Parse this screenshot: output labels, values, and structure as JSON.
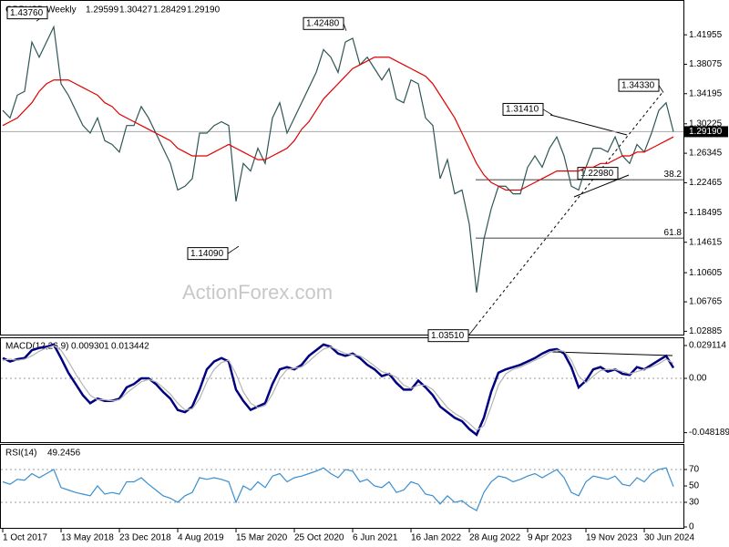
{
  "chart_data": [
    {
      "type": "line",
      "title": "GBPUSD,Weekly",
      "ohlc": [
        "1.29599",
        "1.30427",
        "1.28429",
        "1.29190"
      ],
      "watermark": "ActionForex.com",
      "categories": [
        "1 Oct 2017",
        null,
        null,
        null,
        null,
        null,
        null,
        null,
        "13 May 2018",
        null,
        null,
        null,
        null,
        null,
        null,
        null,
        "23 Dec 2018",
        null,
        null,
        null,
        null,
        null,
        null,
        null,
        "4 Aug 2019",
        null,
        null,
        null,
        null,
        null,
        null,
        null,
        "15 Mar 2020",
        null,
        null,
        null,
        null,
        null,
        null,
        null,
        "25 Oct 2020",
        null,
        null,
        null,
        null,
        null,
        null,
        null,
        "6 Jun 2021",
        null,
        null,
        null,
        null,
        null,
        null,
        null,
        "16 Jan 2022",
        null,
        null,
        null,
        null,
        null,
        null,
        null,
        "28 Aug 2022",
        null,
        null,
        null,
        null,
        null,
        null,
        null,
        "9 Apr 2023",
        null,
        null,
        null,
        null,
        null,
        null,
        null,
        "19 Nov 2023",
        null,
        null,
        null,
        null,
        null,
        null,
        null,
        "30 Jun 2024",
        null,
        null,
        null,
        null
      ],
      "series": [
        {
          "color": "#2f5656",
          "values": [
            1.32,
            1.31,
            1.34,
            1.345,
            1.41,
            1.39,
            1.41,
            1.43,
            1.355,
            1.34,
            1.32,
            1.3,
            1.29,
            1.31,
            1.28,
            1.275,
            1.265,
            1.3,
            1.3,
            1.325,
            1.31,
            1.29,
            1.27,
            1.25,
            1.215,
            1.22,
            1.23,
            1.29,
            1.29,
            1.3,
            1.305,
            1.3,
            1.2,
            1.25,
            1.24,
            1.27,
            1.25,
            1.31,
            1.33,
            1.29,
            1.31,
            1.33,
            1.35,
            1.37,
            1.4,
            1.39,
            1.37,
            1.41,
            1.415,
            1.38,
            1.39,
            1.375,
            1.36,
            1.375,
            1.335,
            1.33,
            1.36,
            1.355,
            1.31,
            1.3,
            1.23,
            1.255,
            1.21,
            1.215,
            1.17,
            1.08,
            1.15,
            1.19,
            1.22,
            1.22,
            1.21,
            1.21,
            1.245,
            1.26,
            1.245,
            1.27,
            1.285,
            1.26,
            1.22,
            1.215,
            1.245,
            1.27,
            1.27,
            1.265,
            1.285,
            1.26,
            1.25,
            1.275,
            1.265,
            1.29,
            1.32,
            1.33,
            1.2919
          ]
        },
        {
          "color": "#e00000",
          "values": [
            1.3,
            1.305,
            1.31,
            1.32,
            1.33,
            1.345,
            1.355,
            1.36,
            1.36,
            1.36,
            1.355,
            1.35,
            1.345,
            1.34,
            1.33,
            1.325,
            1.315,
            1.31,
            1.305,
            1.3,
            1.295,
            1.29,
            1.285,
            1.28,
            1.27,
            1.265,
            1.26,
            1.26,
            1.26,
            1.265,
            1.27,
            1.275,
            1.27,
            1.265,
            1.26,
            1.255,
            1.255,
            1.26,
            1.265,
            1.27,
            1.28,
            1.295,
            1.305,
            1.32,
            1.335,
            1.345,
            1.355,
            1.365,
            1.375,
            1.38,
            1.385,
            1.39,
            1.39,
            1.39,
            1.385,
            1.38,
            1.375,
            1.37,
            1.365,
            1.355,
            1.34,
            1.325,
            1.31,
            1.29,
            1.27,
            1.25,
            1.235,
            1.225,
            1.22,
            1.215,
            1.215,
            1.215,
            1.22,
            1.225,
            1.23,
            1.235,
            1.24,
            1.24,
            1.24,
            1.24,
            1.245,
            1.245,
            1.25,
            1.25,
            1.255,
            1.26,
            1.26,
            1.265,
            1.265,
            1.27,
            1.275,
            1.28,
            1.285
          ]
        }
      ],
      "annotations": [
        {
          "value": 1.4376,
          "label": "1.43760"
        },
        {
          "value": 1.4248,
          "label": "1.42480"
        },
        {
          "value": 1.1409,
          "label": "1.14090"
        },
        {
          "value": 1.0351,
          "label": "1.03510"
        },
        {
          "value": 1.3141,
          "label": "1.31410"
        },
        {
          "value": 1.2298,
          "label": "1.22980"
        },
        {
          "value": 1.3433,
          "label": "1.34330"
        }
      ],
      "fib_levels": [
        {
          "ratio": 38.2,
          "price": 1.2286
        },
        {
          "ratio": 61.8,
          "price": 1.1517
        }
      ],
      "ylim": [
        1.0245,
        1.463
      ],
      "yticks": [
        1.41955,
        1.38075,
        1.34195,
        1.30225,
        1.26345,
        1.22465,
        1.18495,
        1.14615,
        1.10605,
        1.06765,
        1.02885
      ]
    },
    {
      "type": "line",
      "title": "MACD(12,26,9)",
      "series": [
        {
          "color": "#000080",
          "values": [
            0.018,
            0.015,
            0.017,
            0.018,
            0.025,
            0.027,
            0.028,
            0.03,
            0.018,
            0.005,
            -0.005,
            -0.015,
            -0.022,
            -0.018,
            -0.02,
            -0.02,
            -0.018,
            -0.008,
            -0.005,
            0.0,
            0.0,
            -0.005,
            -0.012,
            -0.018,
            -0.028,
            -0.03,
            -0.025,
            -0.01,
            0.008,
            0.015,
            0.018,
            0.015,
            -0.01,
            -0.02,
            -0.028,
            -0.025,
            -0.022,
            -0.005,
            0.008,
            0.01,
            0.008,
            0.012,
            0.02,
            0.025,
            0.03,
            0.028,
            0.022,
            0.02,
            0.022,
            0.018,
            0.012,
            0.008,
            0.002,
            0.004,
            -0.004,
            -0.01,
            -0.01,
            -0.002,
            -0.008,
            -0.015,
            -0.025,
            -0.03,
            -0.035,
            -0.038,
            -0.045,
            -0.05,
            -0.035,
            -0.012,
            0.005,
            0.008,
            0.01,
            0.012,
            0.015,
            0.018,
            0.022,
            0.025,
            0.026,
            0.022,
            0.01,
            -0.008,
            -0.002,
            0.008,
            0.01,
            0.006,
            0.008,
            0.004,
            0.003,
            0.01,
            0.008,
            0.012,
            0.016,
            0.02,
            0.009301
          ]
        },
        {
          "color": "#b4b4b4",
          "values": [
            0.016,
            0.017,
            0.016,
            0.017,
            0.02,
            0.024,
            0.027,
            0.029,
            0.025,
            0.015,
            0.004,
            -0.006,
            -0.015,
            -0.019,
            -0.019,
            -0.02,
            -0.019,
            -0.013,
            -0.008,
            -0.003,
            -0.001,
            -0.003,
            -0.008,
            -0.014,
            -0.022,
            -0.028,
            -0.027,
            -0.018,
            -0.003,
            0.008,
            0.014,
            0.016,
            0.004,
            -0.012,
            -0.022,
            -0.026,
            -0.024,
            -0.014,
            0.0,
            0.008,
            0.009,
            0.01,
            0.015,
            0.021,
            0.026,
            0.028,
            0.025,
            0.022,
            0.021,
            0.02,
            0.016,
            0.011,
            0.006,
            0.004,
            0.001,
            -0.006,
            -0.009,
            -0.006,
            -0.006,
            -0.01,
            -0.018,
            -0.026,
            -0.031,
            -0.035,
            -0.04,
            -0.046,
            -0.042,
            -0.025,
            -0.006,
            0.004,
            0.008,
            0.01,
            0.013,
            0.016,
            0.019,
            0.023,
            0.025,
            0.024,
            0.016,
            0.002,
            -0.004,
            0.002,
            0.007,
            0.008,
            0.008,
            0.006,
            0.004,
            0.006,
            0.008,
            0.01,
            0.013,
            0.017,
            0.013442
          ]
        }
      ],
      "ylim": [
        -0.0566,
        0.0348
      ],
      "yticks": [
        0.029114,
        {
          "value": 0,
          "label": "0.00"
        },
        -0.048189
      ]
    },
    {
      "type": "line",
      "title": "RSI(14)",
      "series": [
        {
          "color": "#3a8fd0",
          "values": [
            55,
            52,
            58,
            57,
            65,
            60,
            65,
            70,
            48,
            45,
            42,
            40,
            38,
            50,
            40,
            42,
            40,
            55,
            55,
            60,
            52,
            45,
            38,
            35,
            30,
            38,
            42,
            60,
            58,
            60,
            58,
            55,
            30,
            50,
            45,
            55,
            48,
            62,
            65,
            55,
            60,
            62,
            65,
            68,
            72,
            65,
            60,
            70,
            68,
            55,
            58,
            50,
            48,
            55,
            42,
            45,
            55,
            52,
            40,
            38,
            28,
            38,
            30,
            32,
            25,
            20,
            42,
            55,
            62,
            60,
            55,
            58,
            62,
            65,
            60,
            65,
            70,
            60,
            42,
            38,
            55,
            62,
            60,
            58,
            62,
            52,
            50,
            60,
            55,
            65,
            70,
            72,
            49.2456
          ]
        }
      ],
      "ylim": [
        0,
        100
      ],
      "yticks": [
        70,
        50,
        30,
        0
      ]
    }
  ]
}
